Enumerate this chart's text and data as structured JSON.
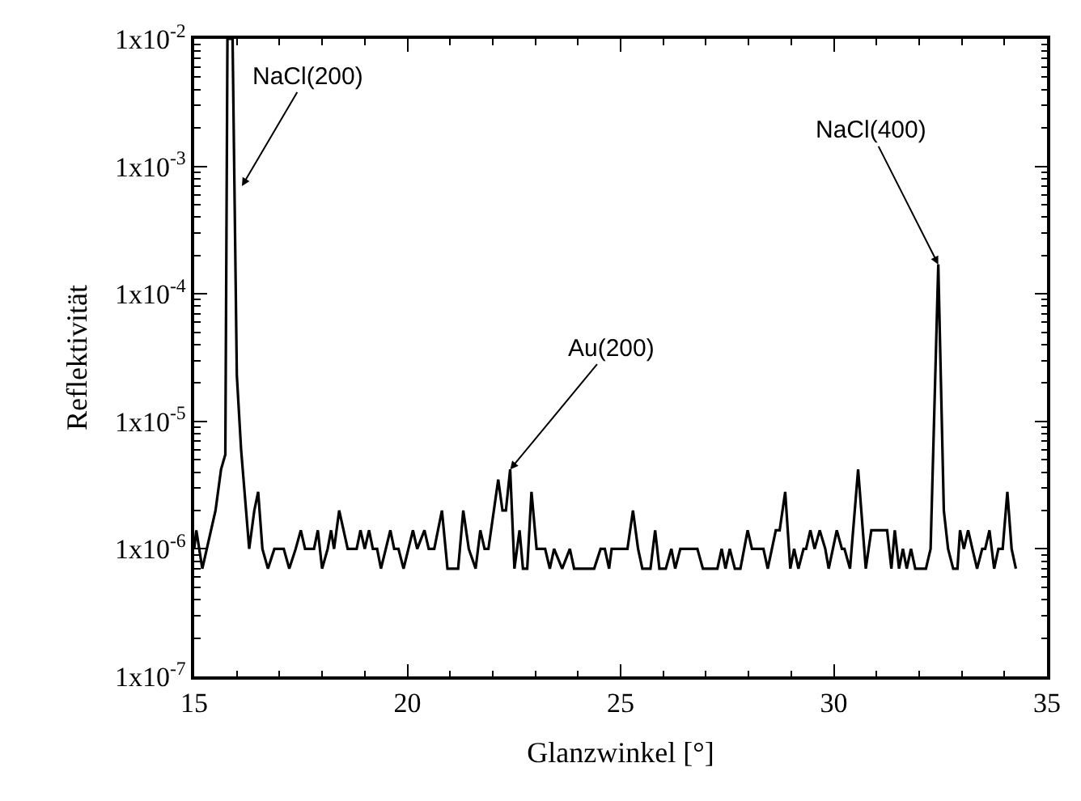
{
  "chart_data": {
    "type": "line",
    "xlabel": "Glanzwinkel [°]",
    "ylabel": "Reflektivität",
    "log": "y",
    "marker": "none",
    "line_style": "solid",
    "xlim": [
      15,
      35
    ],
    "xticks": [
      15,
      20,
      25,
      30,
      35
    ],
    "ylim": [
      1e-07,
      0.01
    ],
    "yticks": [
      {
        "value": 1e-07,
        "label": "1x10$^{-7}$"
      },
      {
        "value": 1e-06,
        "label": "1x10$^{-6}$"
      },
      {
        "value": 1e-05,
        "label": "1x10$^{-5}$"
      },
      {
        "value": 0.0001,
        "label": "1x10$^{-4}$"
      },
      {
        "value": 0.001,
        "label": "1x10$^{-3}$"
      },
      {
        "value": 0.01,
        "label": "1x10$^{-2}$"
      }
    ],
    "annotations": [
      {
        "text": "NaCl(200)",
        "x": 16.12,
        "y": 0.0007
      },
      {
        "text": "Au(200)",
        "x": 22.41,
        "y": 4.2e-06
      },
      {
        "text": "NaCl(400)",
        "x": 32.45,
        "y": 0.00017
      }
    ],
    "series": [
      {
        "color": "#000000",
        "x": [
          15.0,
          15.05,
          15.19,
          15.5,
          15.63,
          15.73,
          15.78,
          15.9,
          16.0,
          16.1,
          16.29,
          16.41,
          16.5,
          16.6,
          16.73,
          16.88,
          17.1,
          17.23,
          17.38,
          17.5,
          17.6,
          17.81,
          17.9,
          18.0,
          18.13,
          18.21,
          18.28,
          18.4,
          18.6,
          18.81,
          18.9,
          19.0,
          19.1,
          19.19,
          19.29,
          19.38,
          19.6,
          19.69,
          19.79,
          19.91,
          20.13,
          20.23,
          20.4,
          20.5,
          20.63,
          20.81,
          20.94,
          21.19,
          21.31,
          21.44,
          21.6,
          21.71,
          21.81,
          21.9,
          22.13,
          22.23,
          22.31,
          22.41,
          22.51,
          22.63,
          22.71,
          22.81,
          22.91,
          23.03,
          23.23,
          23.34,
          23.44,
          23.63,
          23.81,
          23.91,
          24.38,
          24.53,
          24.63,
          24.73,
          24.79,
          25.16,
          25.29,
          25.41,
          25.51,
          25.7,
          25.81,
          25.91,
          26.06,
          26.19,
          26.28,
          26.4,
          26.8,
          26.93,
          27.27,
          27.37,
          27.46,
          27.56,
          27.68,
          27.81,
          27.98,
          28.08,
          28.35,
          28.45,
          28.64,
          28.73,
          28.86,
          28.98,
          29.07,
          29.17,
          29.29,
          29.35,
          29.45,
          29.55,
          29.67,
          29.8,
          29.88,
          30.07,
          30.19,
          30.25,
          30.38,
          30.57,
          30.75,
          30.88,
          31.25,
          31.35,
          31.43,
          31.53,
          31.62,
          31.71,
          31.81,
          31.91,
          32.16,
          32.27,
          32.45,
          32.58,
          32.68,
          32.8,
          32.9,
          32.96,
          33.05,
          33.15,
          33.25,
          33.36,
          33.48,
          33.55,
          33.65,
          33.76,
          33.86,
          33.96,
          34.07,
          34.17,
          34.27
        ],
        "values": [
          1e-06,
          1.4e-06,
          7e-07,
          2e-06,
          4.2e-06,
          5.5e-06,
          0.01,
          0.01,
          2.3e-05,
          6e-06,
          1e-06,
          2e-06,
          2.8e-06,
          1e-06,
          7e-07,
          1e-06,
          1e-06,
          7e-07,
          1e-06,
          1.4e-06,
          1e-06,
          1e-06,
          1.4e-06,
          7e-07,
          1e-06,
          1.4e-06,
          1e-06,
          2e-06,
          1e-06,
          1e-06,
          1.4e-06,
          1e-06,
          1.4e-06,
          1e-06,
          1e-06,
          7e-07,
          1.4e-06,
          1e-06,
          1e-06,
          7e-07,
          1.4e-06,
          1e-06,
          1.4e-06,
          1e-06,
          1e-06,
          2e-06,
          7e-07,
          7e-07,
          2e-06,
          1e-06,
          7e-07,
          1.4e-06,
          1e-06,
          1e-06,
          3.5e-06,
          2e-06,
          2e-06,
          4.2e-06,
          7e-07,
          1.4e-06,
          7e-07,
          7e-07,
          2.8e-06,
          1e-06,
          1e-06,
          7e-07,
          1e-06,
          7e-07,
          1e-06,
          7e-07,
          7e-07,
          1e-06,
          1e-06,
          7e-07,
          1e-06,
          1e-06,
          2e-06,
          1e-06,
          7e-07,
          7e-07,
          1.4e-06,
          7e-07,
          7e-07,
          1e-06,
          7e-07,
          1e-06,
          1e-06,
          7e-07,
          7e-07,
          1e-06,
          7e-07,
          1e-06,
          7e-07,
          7e-07,
          1.4e-06,
          1e-06,
          1e-06,
          7e-07,
          1.4e-06,
          1.4e-06,
          2.8e-06,
          7e-07,
          1e-06,
          7e-07,
          1e-06,
          1e-06,
          1.4e-06,
          1e-06,
          1.4e-06,
          1e-06,
          7e-07,
          1.4e-06,
          1e-06,
          1e-06,
          7e-07,
          4.2e-06,
          7e-07,
          1.4e-06,
          1.4e-06,
          7e-07,
          1.4e-06,
          7e-07,
          1e-06,
          7e-07,
          1e-06,
          7e-07,
          7e-07,
          1e-06,
          0.00017,
          2e-06,
          1e-06,
          7e-07,
          7e-07,
          1.4e-06,
          1e-06,
          1.4e-06,
          1e-06,
          7e-07,
          1e-06,
          1e-06,
          1.4e-06,
          7e-07,
          1e-06,
          1e-06,
          2.8e-06,
          1e-06,
          7e-07
        ]
      }
    ]
  }
}
